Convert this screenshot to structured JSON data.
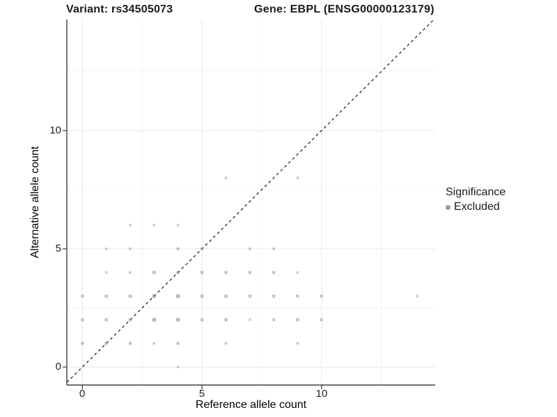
{
  "header": {
    "variant_title": "Variant: rs34505073",
    "gene_title": "Gene: EBPL (ENSG00000123179)"
  },
  "legend": {
    "title": "Significance",
    "items": [
      {
        "label": "Excluded",
        "color": "#9b9b9b"
      }
    ]
  },
  "chart_data": {
    "type": "scatter",
    "title": "Variant: rs34505073  Gene: EBPL (ENSG00000123179)",
    "xlabel": "Reference allele count",
    "ylabel": "Alternative allele count",
    "grid": true,
    "legend_position": "right",
    "point_color": "#8c8c8c",
    "x_axis": {
      "tick_values": [
        0,
        5,
        10
      ],
      "tick_labels": [
        "0",
        "5",
        "10"
      ],
      "minor_ticks": [
        2.5,
        7.5,
        12.5
      ],
      "lim": [
        -0.65,
        14.75
      ]
    },
    "y_axis": {
      "tick_values": [
        0,
        5,
        10
      ],
      "tick_labels": [
        "0",
        "5",
        "10"
      ],
      "minor_ticks": [
        2.5,
        7.5,
        12.5
      ],
      "lim": [
        -0.76,
        14.7
      ]
    },
    "identity_line": {
      "slope": 1,
      "intercept": 0,
      "style": "dashed",
      "color": "#111111"
    },
    "points_schema": [
      "x",
      "y",
      "size_px"
    ],
    "points": [
      [
        4,
        0,
        2.1
      ],
      [
        0,
        1,
        2.5
      ],
      [
        1,
        1,
        2.5
      ],
      [
        2,
        1,
        2.5
      ],
      [
        3,
        1,
        2.1
      ],
      [
        4,
        1,
        2.5
      ],
      [
        6,
        1,
        2.2
      ],
      [
        9,
        1,
        2.1
      ],
      [
        0,
        2,
        2.5
      ],
      [
        1,
        2,
        2.5
      ],
      [
        2,
        2,
        2.6
      ],
      [
        3,
        2,
        3.0
      ],
      [
        4,
        2,
        3.0
      ],
      [
        5,
        2,
        2.6
      ],
      [
        6,
        2,
        2.6
      ],
      [
        7,
        2,
        2.0
      ],
      [
        8,
        2,
        2.4
      ],
      [
        9,
        2,
        2.6
      ],
      [
        10,
        2,
        2.4
      ],
      [
        0,
        3,
        2.4
      ],
      [
        1,
        3,
        2.6
      ],
      [
        2,
        3,
        2.7
      ],
      [
        3,
        3,
        3.0
      ],
      [
        4,
        3,
        3.1
      ],
      [
        5,
        3,
        2.7
      ],
      [
        6,
        3,
        2.7
      ],
      [
        7,
        3,
        2.6
      ],
      [
        8,
        3,
        2.6
      ],
      [
        9,
        3,
        2.5
      ],
      [
        10,
        3,
        2.4
      ],
      [
        14,
        3,
        2.1
      ],
      [
        1,
        4,
        2.1
      ],
      [
        2,
        4,
        2.2
      ],
      [
        3,
        4,
        2.8
      ],
      [
        4,
        4,
        2.7
      ],
      [
        5,
        4,
        2.5
      ],
      [
        6,
        4,
        2.4
      ],
      [
        7,
        4,
        2.4
      ],
      [
        8,
        4,
        2.4
      ],
      [
        9,
        4,
        2.1
      ],
      [
        1,
        5,
        2.1
      ],
      [
        2,
        5,
        2.2
      ],
      [
        4,
        5,
        2.4
      ],
      [
        5,
        5,
        2.4
      ],
      [
        7,
        5,
        2.2
      ],
      [
        8,
        5,
        2.2
      ],
      [
        2,
        6,
        2.1
      ],
      [
        3,
        6,
        2.1
      ],
      [
        4,
        6,
        2.1
      ],
      [
        6,
        8,
        2.1
      ],
      [
        9,
        8,
        2.1
      ]
    ]
  }
}
